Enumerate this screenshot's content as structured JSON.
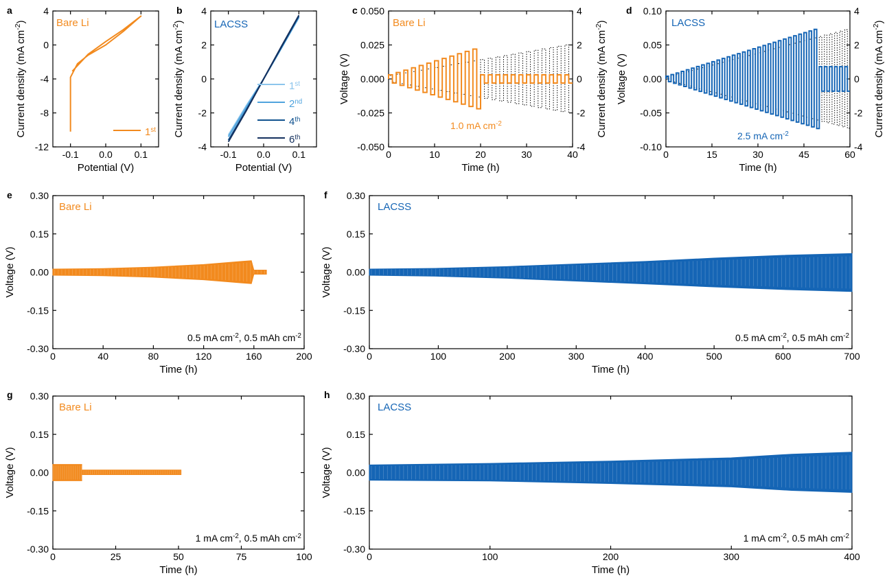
{
  "colors": {
    "orange": "#F28A1E",
    "blue": "#1565B5",
    "blue_light": "#8CC5EC",
    "blue_mid": "#4FA3DD",
    "blue_dark": "#10528F",
    "navy": "#14305E",
    "black": "#000000"
  },
  "chart_data": [
    {
      "id": "a",
      "panel_label": "a",
      "type": "line",
      "title": "Bare Li",
      "xlabel": "Potential (V)",
      "ylabel": "Current density (mA cm-2)",
      "xlim": [
        -0.15,
        0.15
      ],
      "ylim": [
        -12,
        4
      ],
      "xticks": [
        "-0.1",
        "0.0",
        "0.1"
      ],
      "yticks": [
        "4",
        "0",
        "-4",
        "-8",
        "-12"
      ],
      "legend": [
        {
          "label": "1",
          "sup": "st"
        }
      ],
      "series": [
        {
          "x": [
            -0.1,
            -0.1,
            -0.1,
            -0.08,
            -0.05,
            0.0,
            0.05,
            0.1,
            0.05,
            0.0,
            -0.05,
            -0.095
          ],
          "y": [
            -10.2,
            -6.0,
            -3.8,
            -2.2,
            -1.2,
            0.0,
            1.6,
            3.4,
            1.8,
            0.4,
            -1.1,
            -3.1
          ]
        }
      ]
    },
    {
      "id": "b",
      "panel_label": "b",
      "type": "line",
      "title": "LACSS",
      "xlabel": "Potential (V)",
      "ylabel": "Current density (mA cm-2)",
      "xlim": [
        -0.15,
        0.15
      ],
      "ylim": [
        -4,
        4
      ],
      "xticks": [
        "-0.1",
        "0.0",
        "0.1"
      ],
      "yticks": [
        "4",
        "2",
        "0",
        "-2",
        "-4"
      ],
      "legend": [
        {
          "label": "1",
          "sup": "st"
        },
        {
          "label": "2",
          "sup": "nd"
        },
        {
          "label": "4",
          "sup": "th"
        },
        {
          "label": "6",
          "sup": "th"
        }
      ],
      "series": [
        {
          "x": [
            -0.1,
            -0.05,
            0.0,
            0.05,
            0.1
          ],
          "y": [
            -3.3,
            -1.6,
            0.0,
            1.8,
            3.6
          ]
        },
        {
          "x": [
            -0.1,
            -0.05,
            0.0,
            0.05,
            0.1
          ],
          "y": [
            -3.4,
            -1.7,
            0.0,
            1.8,
            3.65
          ]
        },
        {
          "x": [
            -0.1,
            -0.05,
            0.0,
            0.05,
            0.1
          ],
          "y": [
            -3.6,
            -1.85,
            0.0,
            1.85,
            3.7
          ]
        },
        {
          "x": [
            -0.1,
            -0.05,
            0.0,
            0.05,
            0.1
          ],
          "y": [
            -3.7,
            -1.9,
            0.0,
            1.9,
            3.75
          ]
        }
      ]
    },
    {
      "id": "c",
      "panel_label": "c",
      "type": "line",
      "title": "Bare Li",
      "xlabel": "Time (h)",
      "ylabel": "Voltage (V)",
      "ylabel_right": "Current density (mA cm-2)",
      "xlim": [
        0,
        40
      ],
      "ylim": [
        -0.05,
        0.05
      ],
      "ylim_right": [
        -4,
        4
      ],
      "xticks": [
        "0",
        "10",
        "20",
        "30",
        "40"
      ],
      "yticks": [
        "0.050",
        "0.025",
        "0.000",
        "-0.025",
        "-0.050"
      ],
      "yticks_right": [
        "4",
        "2",
        "0",
        "-2",
        "-4"
      ],
      "annotation": "1.0 mA cm-2",
      "voltage_envelope": {
        "t_start": 0,
        "t_end": 20,
        "v_start": 0.003,
        "v_end": 0.022,
        "plateau_after": 0.003,
        "plateau_end": 40,
        "steps": 12
      },
      "current_envelope": {
        "t_start": 0,
        "t_end": 40,
        "i_start": 0.2,
        "i_end": 2.0,
        "steps": 24
      }
    },
    {
      "id": "d",
      "panel_label": "d",
      "type": "line",
      "title": "LACSS",
      "xlabel": "Time (h)",
      "ylabel": "Voltage (V)",
      "ylabel_right": "Current density (mA cm-2)",
      "xlim": [
        0,
        60
      ],
      "ylim": [
        -0.1,
        0.1
      ],
      "ylim_right": [
        -4,
        4
      ],
      "xticks": [
        "0",
        "15",
        "30",
        "45",
        "60"
      ],
      "yticks": [
        "0.10",
        "0.05",
        "0.00",
        "-0.05",
        "-0.10"
      ],
      "yticks_right": [
        "4",
        "2",
        "0",
        "-2",
        "-4"
      ],
      "annotation": "2.5 mA cm-2",
      "voltage_envelope": {
        "t_start": 0,
        "t_end": 50,
        "v_start": 0.004,
        "v_end": 0.073,
        "plateau_after": 0.018,
        "plateau_end": 60,
        "steps": 30
      },
      "current_envelope": {
        "t_start": 0,
        "t_end": 60,
        "i_start": 0.1,
        "i_end": 2.9,
        "steps": 36
      }
    },
    {
      "id": "e",
      "panel_label": "e",
      "type": "area",
      "title": "Bare Li",
      "xlabel": "Time (h)",
      "ylabel": "Voltage (V)",
      "xlim": [
        0,
        200
      ],
      "ylim": [
        -0.3,
        0.3
      ],
      "xticks": [
        "0",
        "40",
        "80",
        "120",
        "160",
        "200"
      ],
      "yticks": [
        "0.30",
        "0.15",
        "0.00",
        "-0.15",
        "-0.30"
      ],
      "annotation": "0.5 mA cm-2, 0.5 mAh cm-2",
      "envelope": {
        "x": [
          0,
          40,
          80,
          120,
          150,
          158,
          160,
          170
        ],
        "upper": [
          0.012,
          0.014,
          0.02,
          0.03,
          0.042,
          0.045,
          0.008,
          0.008
        ],
        "lower": [
          -0.012,
          -0.014,
          -0.02,
          -0.03,
          -0.042,
          -0.045,
          -0.008,
          -0.008
        ]
      }
    },
    {
      "id": "f",
      "panel_label": "f",
      "type": "area",
      "title": "LACSS",
      "xlabel": "Time (h)",
      "ylabel": "Voltage (V)",
      "xlim": [
        0,
        700
      ],
      "ylim": [
        -0.3,
        0.3
      ],
      "xticks": [
        "0",
        "100",
        "200",
        "300",
        "400",
        "500",
        "600",
        "700"
      ],
      "yticks": [
        "0.30",
        "0.15",
        "0.00",
        "-0.15",
        "-0.30"
      ],
      "annotation": "0.5 mA cm-2, 0.5 mAh cm-2",
      "envelope": {
        "x": [
          0,
          100,
          200,
          300,
          400,
          500,
          600,
          700
        ],
        "upper": [
          0.012,
          0.015,
          0.022,
          0.032,
          0.042,
          0.055,
          0.066,
          0.073
        ],
        "lower": [
          -0.012,
          -0.016,
          -0.024,
          -0.035,
          -0.046,
          -0.058,
          -0.068,
          -0.076
        ]
      }
    },
    {
      "id": "g",
      "panel_label": "g",
      "type": "area",
      "title": "Bare Li",
      "xlabel": "Time (h)",
      "ylabel": "Voltage (V)",
      "xlim": [
        0,
        100
      ],
      "ylim": [
        -0.3,
        0.3
      ],
      "xticks": [
        "0",
        "25",
        "50",
        "75",
        "100"
      ],
      "yticks": [
        "0.30",
        "0.15",
        "0.00",
        "-0.15",
        "-0.30"
      ],
      "annotation": "1 mA cm-2, 0.5 mAh cm-2",
      "envelope": {
        "x": [
          0,
          11.5,
          11.5,
          51
        ],
        "upper": [
          0.032,
          0.032,
          0.01,
          0.01
        ],
        "lower": [
          -0.032,
          -0.032,
          -0.008,
          -0.008
        ]
      }
    },
    {
      "id": "h",
      "panel_label": "h",
      "type": "area",
      "title": "LACSS",
      "xlabel": "Time (h)",
      "ylabel": "Voltage (V)",
      "xlim": [
        0,
        400
      ],
      "ylim": [
        -0.3,
        0.3
      ],
      "xticks": [
        "0",
        "100",
        "200",
        "300",
        "400"
      ],
      "yticks": [
        "0.30",
        "0.15",
        "0.00",
        "-0.15",
        "-0.30"
      ],
      "annotation": "1 mA cm-2, 0.5 mAh cm-2",
      "envelope": {
        "x": [
          0,
          100,
          200,
          300,
          350,
          400
        ],
        "upper": [
          0.03,
          0.036,
          0.045,
          0.058,
          0.072,
          0.08
        ],
        "lower": [
          -0.03,
          -0.033,
          -0.043,
          -0.056,
          -0.07,
          -0.078
        ]
      }
    }
  ]
}
